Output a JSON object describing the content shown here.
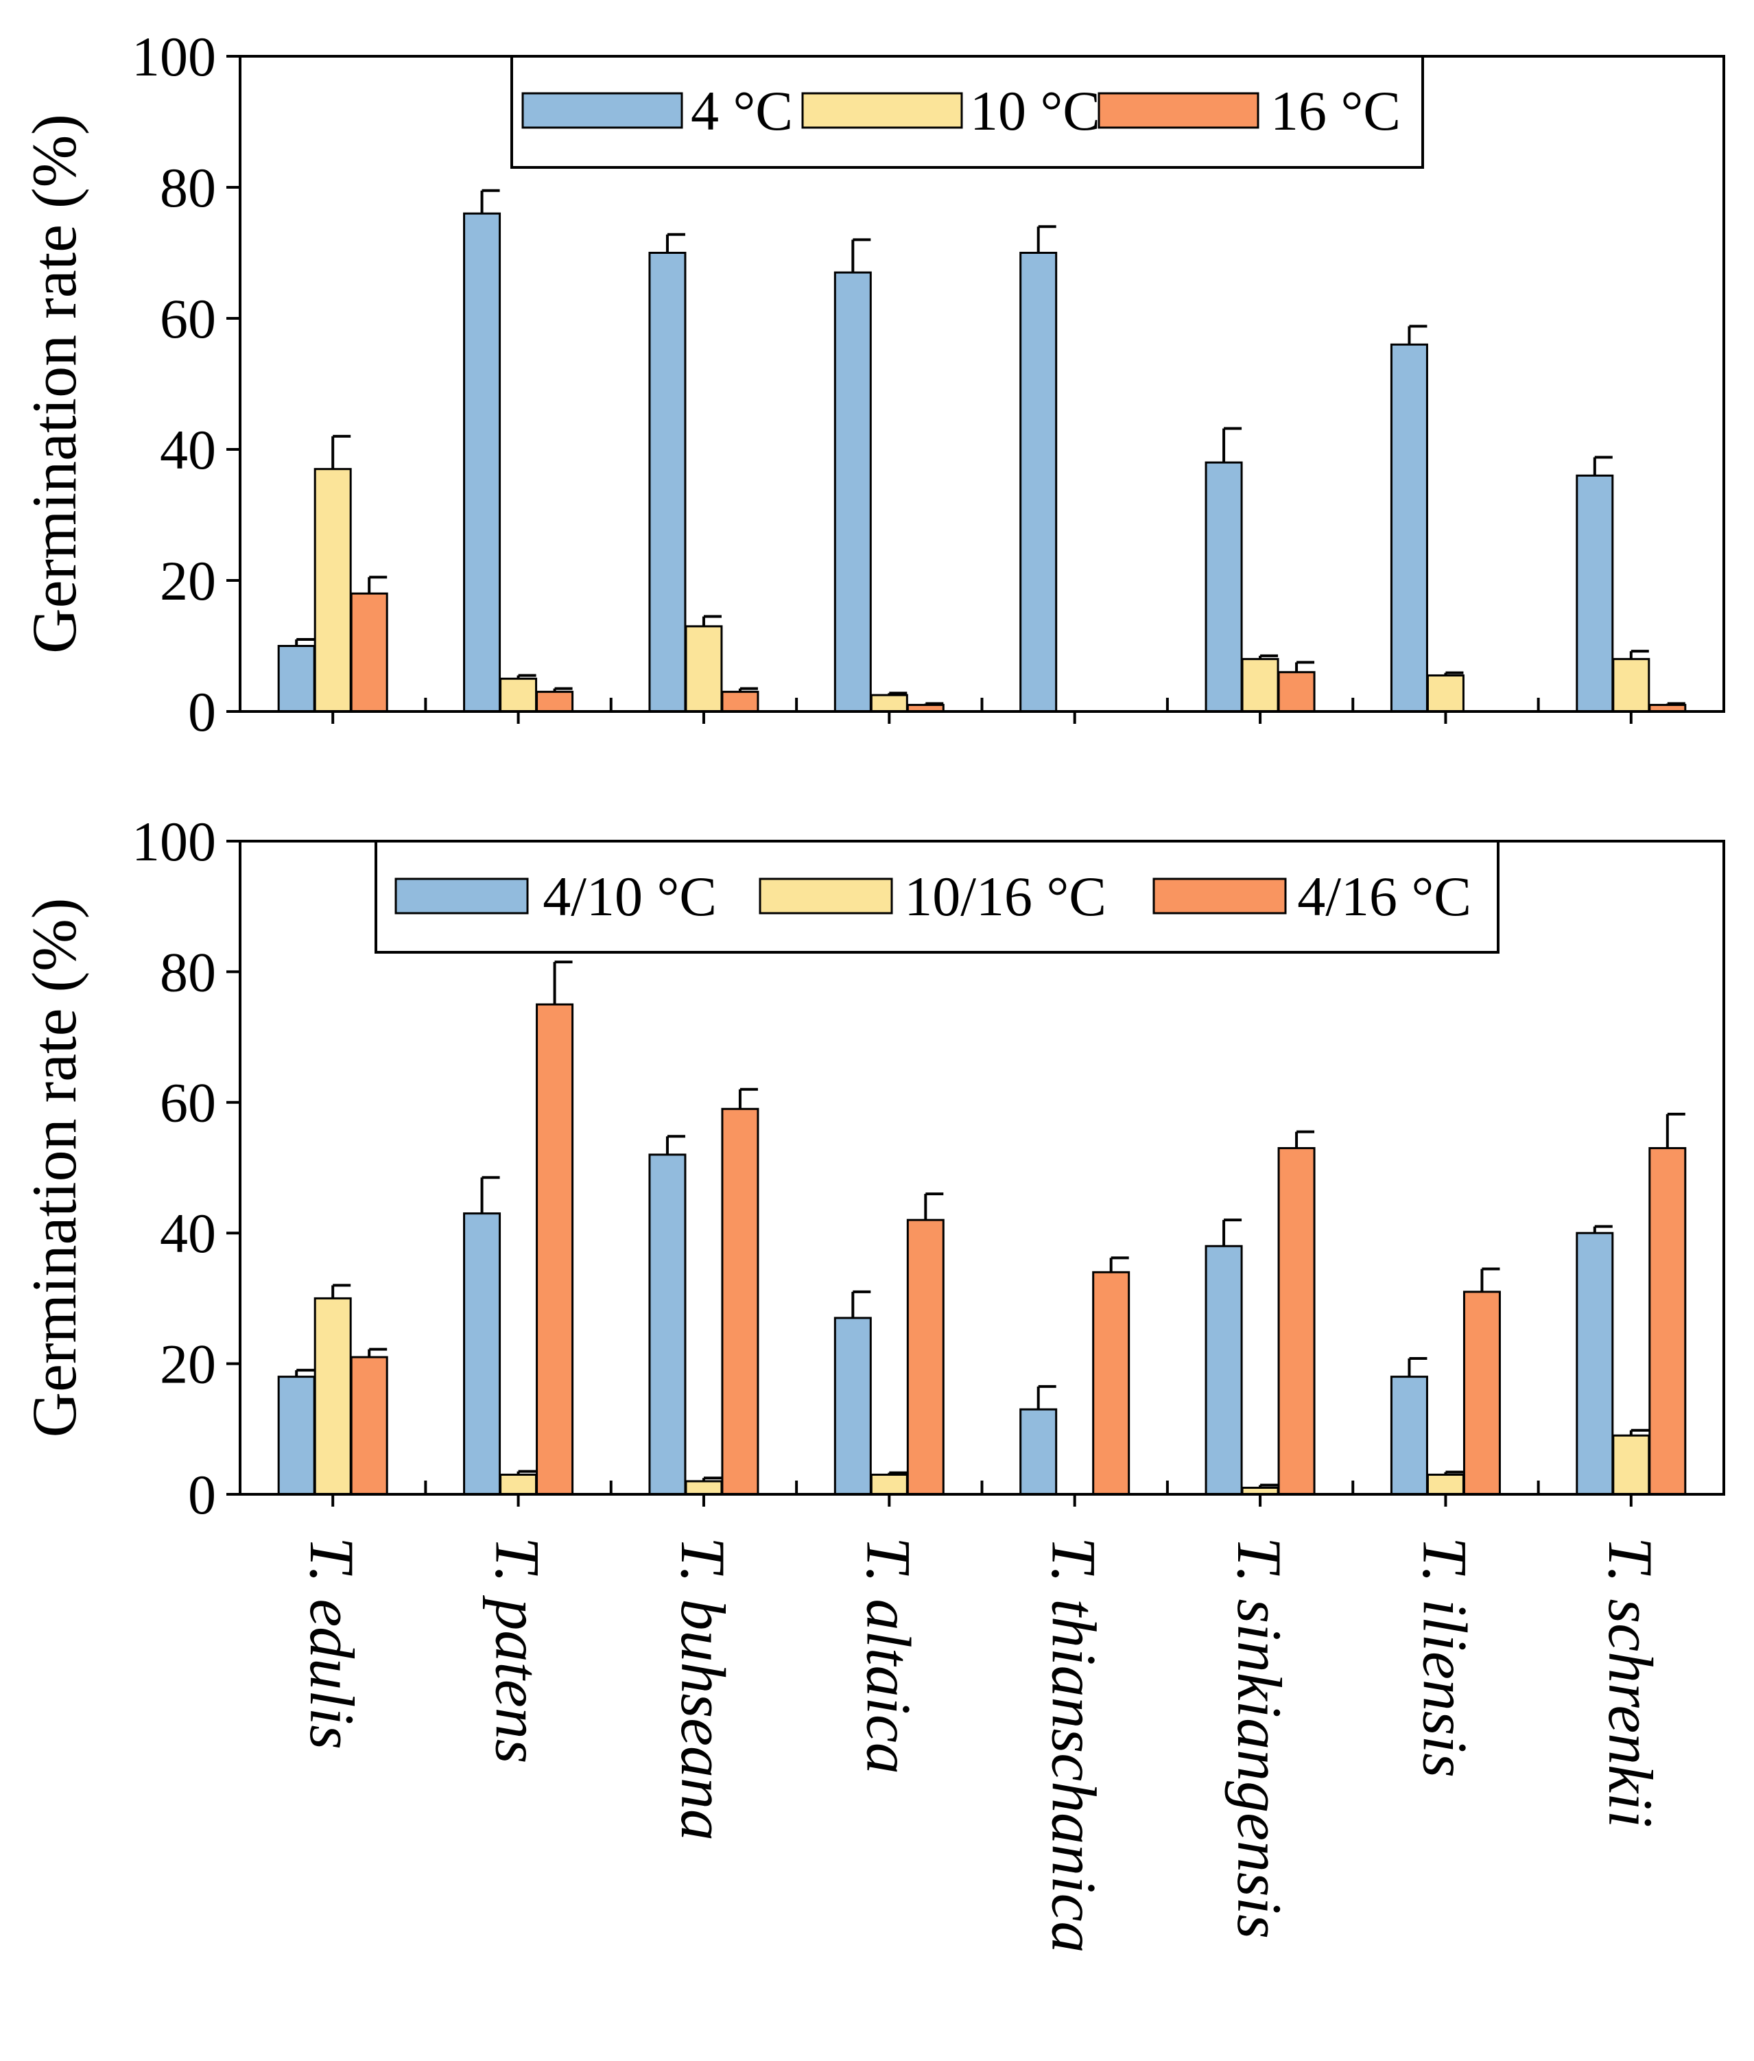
{
  "colors": {
    "blue": "#92bbdd",
    "yellow": "#fbe499",
    "orange": "#f99560",
    "stroke": "#000000",
    "background": "#ffffff"
  },
  "categories": [
    "T. edulis",
    "T. patens",
    "T. buhseana",
    "T. altaica",
    "T. thianschanica",
    "T. sinkiangensis",
    "T. iliensis",
    "T. schrenkii"
  ],
  "chart_data": [
    {
      "type": "bar",
      "title": "",
      "xlabel": "",
      "ylabel": "Germination rate (%)",
      "ylim": [
        0,
        100
      ],
      "yticks": [
        "0",
        "20",
        "40",
        "60",
        "80",
        "100"
      ],
      "categories": [
        "T. edulis",
        "T. patens",
        "T. buhseana",
        "T. altaica",
        "T. thianschanica",
        "T. sinkiangensis",
        "T. iliensis",
        "T. schrenkii"
      ],
      "legend_position": "top-center",
      "series": [
        {
          "name": "4 °C",
          "color": "#92bbdd",
          "values": [
            10,
            76,
            70,
            67,
            70,
            38,
            56,
            36
          ],
          "errors": [
            1,
            3.5,
            2.8,
            5,
            4,
            5.2,
            2.8,
            2.8
          ]
        },
        {
          "name": "10 °C",
          "color": "#fbe499",
          "values": [
            37,
            5,
            13,
            2.5,
            0,
            8,
            5.5,
            8
          ],
          "errors": [
            5,
            0.5,
            1.5,
            0.3,
            0,
            0.5,
            0.4,
            1.2
          ]
        },
        {
          "name": "16 °C",
          "color": "#f99560",
          "values": [
            18,
            3,
            3,
            1,
            0,
            6,
            0,
            1
          ],
          "errors": [
            2.5,
            0.5,
            0.5,
            0.2,
            0,
            1.5,
            0,
            0.2
          ]
        }
      ]
    },
    {
      "type": "bar",
      "title": "",
      "xlabel": "",
      "ylabel": "Germination rate (%)",
      "ylim": [
        0,
        100
      ],
      "yticks": [
        "0",
        "20",
        "40",
        "60",
        "80",
        "100"
      ],
      "categories": [
        "T. edulis",
        "T. patens",
        "T. buhseana",
        "T. altaica",
        "T. thianschanica",
        "T. sinkiangensis",
        "T. iliensis",
        "T. schrenkii"
      ],
      "legend_position": "top-center",
      "series": [
        {
          "name": "4/10 °C",
          "color": "#92bbdd",
          "values": [
            18,
            43,
            52,
            27,
            13,
            38,
            18,
            40
          ],
          "errors": [
            1,
            5.5,
            2.8,
            4,
            3.5,
            4,
            2.8,
            1
          ]
        },
        {
          "name": "10/16 °C",
          "color": "#fbe499",
          "values": [
            30,
            3,
            2,
            3,
            0,
            1,
            3,
            9
          ],
          "errors": [
            2,
            0.5,
            0.5,
            0.3,
            0,
            0.4,
            0.4,
            0.8
          ]
        },
        {
          "name": "4/16 °C",
          "color": "#f99560",
          "values": [
            21,
            75,
            59,
            42,
            34,
            53,
            31,
            53
          ],
          "errors": [
            1.2,
            6.5,
            3,
            4,
            2.2,
            2.5,
            3.5,
            5.2
          ]
        }
      ]
    }
  ]
}
